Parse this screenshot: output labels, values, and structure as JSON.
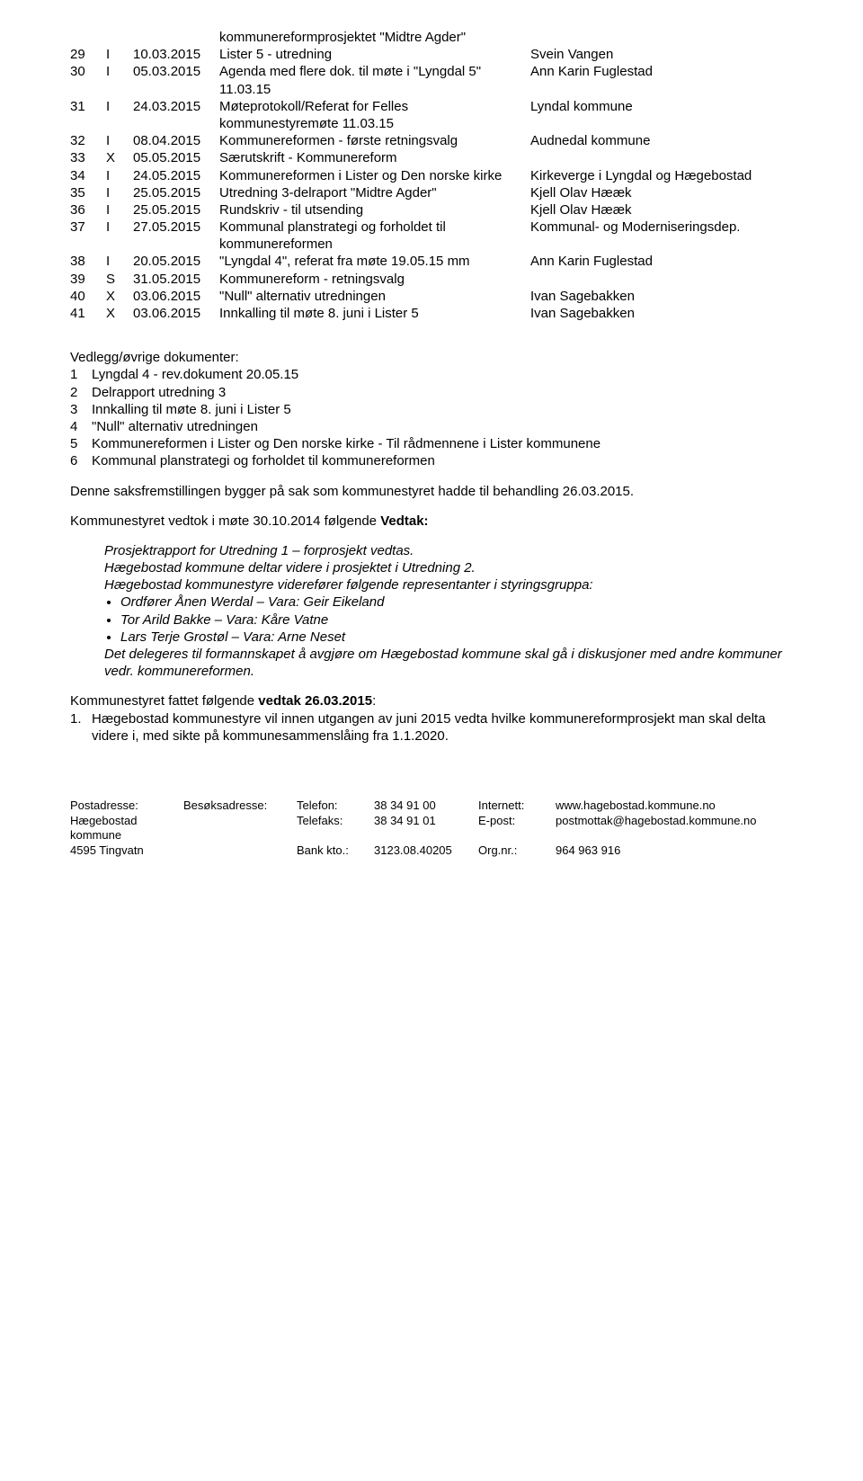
{
  "table_rows": [
    {
      "num": "",
      "type": "",
      "date": "",
      "subject": "kommunereformprosjektet \"Midtre Agder\"",
      "party": ""
    },
    {
      "num": "29",
      "type": "I",
      "date": "10.03.2015",
      "subject": "Lister 5 - utredning",
      "party": "Svein Vangen"
    },
    {
      "num": "30",
      "type": "I",
      "date": "05.03.2015",
      "subject": "Agenda med flere dok. til møte i \"Lyngdal 5\" 11.03.15",
      "party": "Ann Karin Fuglestad"
    },
    {
      "num": "31",
      "type": "I",
      "date": "24.03.2015",
      "subject": "Møteprotokoll/Referat for Felles kommunestyremøte 11.03.15",
      "party": "Lyndal kommune"
    },
    {
      "num": "32",
      "type": "I",
      "date": "08.04.2015",
      "subject": "Kommunereformen - første retningsvalg",
      "party": "Audnedal kommune"
    },
    {
      "num": "33",
      "type": "X",
      "date": "05.05.2015",
      "subject": "Særutskrift - Kommunereform",
      "party": ""
    },
    {
      "num": "34",
      "type": "I",
      "date": "24.05.2015",
      "subject": "Kommunereformen i Lister og Den norske kirke",
      "party": "Kirkeverge i Lyngdal og Hægebostad"
    },
    {
      "num": "35",
      "type": "I",
      "date": "25.05.2015",
      "subject": "Utredning 3-delraport \"Midtre Agder\"",
      "party": "Kjell Olav Hææk"
    },
    {
      "num": "36",
      "type": "I",
      "date": "25.05.2015",
      "subject": "Rundskriv - til utsending",
      "party": "Kjell Olav Hææk"
    },
    {
      "num": "37",
      "type": "I",
      "date": "27.05.2015",
      "subject": "Kommunal planstrategi og forholdet til kommunereformen",
      "party": "Kommunal- og Moderniseringsdep."
    },
    {
      "num": "38",
      "type": "I",
      "date": "20.05.2015",
      "subject": "\"Lyngdal 4\", referat fra møte 19.05.15 mm",
      "party": "Ann Karin Fuglestad"
    },
    {
      "num": "39",
      "type": "S",
      "date": "31.05.2015",
      "subject": "Kommunereform - retningsvalg",
      "party": ""
    },
    {
      "num": "40",
      "type": "X",
      "date": "03.06.2015",
      "subject": "\"Null\" alternativ utredningen",
      "party": "Ivan Sagebakken"
    },
    {
      "num": "41",
      "type": "X",
      "date": "03.06.2015",
      "subject": "Innkalling til møte 8. juni i Lister 5",
      "party": "Ivan Sagebakken"
    }
  ],
  "attachments_title": "Vedlegg/øvrige dokumenter:",
  "attachments": [
    {
      "n": "1",
      "t": "Lyngdal 4 - rev.dokument 20.05.15"
    },
    {
      "n": "2",
      "t": "Delrapport utredning 3"
    },
    {
      "n": "3",
      "t": "Innkalling til møte 8. juni i Lister 5"
    },
    {
      "n": "4",
      "t": "\"Null\" alternativ utredningen"
    },
    {
      "n": "5",
      "t": "Kommunereformen i Lister og Den norske kirke - Til rådmennene i Lister kommunene"
    },
    {
      "n": "6",
      "t": "Kommunal planstrategi og forholdet til kommunereformen"
    }
  ],
  "para_based_on": "Denne saksfremstillingen bygger på sak som kommunestyret hadde til behandling 26.03.2015.",
  "meeting_decision_prefix": "Kommunestyret vedtok i møte 30.10.2014 følgende ",
  "meeting_decision_bold": "Vedtak:",
  "decision_block": {
    "p1": "Prosjektrapport for Utredning 1 – forprosjekt vedtas.",
    "p2": "Hægebostad kommune deltar videre i prosjektet i Utredning 2.",
    "p3": "Hægebostad kommunestyre viderefører følgende representanter i styringsgruppa:",
    "bullets": [
      "Ordfører Ånen Werdal – Vara: Geir Eikeland",
      "Tor Arild Bakke – Vara: Kåre Vatne",
      "Lars Terje Grostøl – Vara: Arne Neset"
    ],
    "p4": "Det delegeres til formannskapet å avgjøre om Hægebostad kommune skal gå i diskusjoner med andre kommuner vedr. kommunereformen."
  },
  "vedtak2_prefix": "Kommunestyret fattet følgende ",
  "vedtak2_bold": "vedtak 26.03.2015",
  "vedtak2_suffix": ":",
  "vedtak2_item_num": "1.",
  "vedtak2_item_text": "Hægebostad kommunestyre vil innen utgangen av juni 2015 vedta hvilke kommunereformprosjekt man skal delta videre i, med sikte på kommunesammenslåing fra 1.1.2020.",
  "footer": {
    "col1_label": "Postadresse:",
    "col1_l1": "Hægebostad kommune",
    "col1_l2": "4595 Tingvatn",
    "col2_label": "Besøksadresse:",
    "col3_label": "Telefon:",
    "col3_label2": "Telefaks:",
    "col3_label3": "Bank kto.:",
    "col4_v1": "38 34 91 00",
    "col4_v2": "38 34 91 01",
    "col4_v3": "3123.08.40205",
    "col5_label": "Internett:",
    "col5_label2": "E-post:",
    "col5_label3": "Org.nr.:",
    "col6_v1": "www.hagebostad.kommune.no",
    "col6_v2": "postmottak@hagebostad.kommune.no",
    "col6_v3": "964 963 916"
  }
}
